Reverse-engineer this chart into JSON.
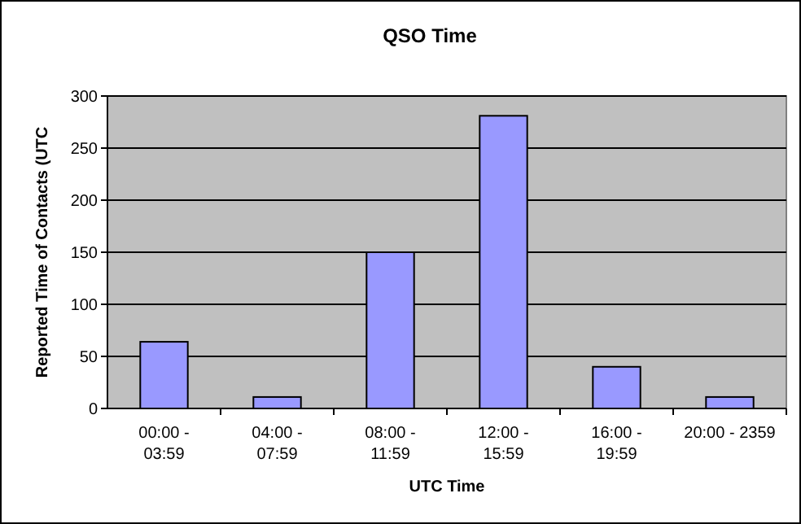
{
  "chart_data": {
    "type": "bar",
    "title": "QSO Time",
    "xlabel": "UTC Time",
    "ylabel": "Reported Time of Contacts (UTC",
    "categories": [
      "00:00 - 03:59",
      "04:00 - 07:59",
      "08:00 - 11:59",
      "12:00 - 15:59",
      "16:00 - 19:59",
      "20:00 - 2359"
    ],
    "values": [
      64,
      11,
      150,
      281,
      40,
      11
    ],
    "color": "#9999ff",
    "ylim": [
      0,
      300
    ],
    "yticks": [
      0,
      50,
      100,
      150,
      200,
      250,
      300
    ],
    "grid": "y"
  }
}
